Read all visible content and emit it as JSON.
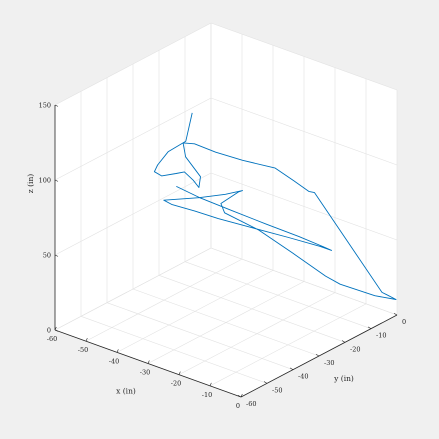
{
  "chart_data": {
    "type": "line3d",
    "title": "",
    "xlabel": "x (in)",
    "ylabel": "y (in)",
    "zlabel": "z (in)",
    "xlim": [
      -60,
      0
    ],
    "ylim": [
      -60,
      0
    ],
    "zlim": [
      0,
      150
    ],
    "xticks": [
      -60,
      -50,
      -40,
      -30,
      -20,
      -10,
      0
    ],
    "yticks": [
      -60,
      -50,
      -40,
      -30,
      -20,
      -10,
      0
    ],
    "zticks": [
      0,
      50,
      100,
      150
    ],
    "xtick_labels": [
      "-60",
      "-50",
      "-40",
      "-30",
      "-20",
      "-10",
      "0"
    ],
    "ytick_labels": [
      "-60",
      "-50",
      "-40",
      "-30",
      "-20",
      "-10",
      "0"
    ],
    "ztick_labels": [
      "0",
      "50",
      "100",
      "150"
    ],
    "grid": true,
    "box": "open",
    "line_color": "#0072BD",
    "pane_color": "#ffffff",
    "background_color": "#f0f0f0",
    "series": [
      {
        "x": [
          -56,
          -48,
          -47,
          -42,
          -38,
          -34,
          -31,
          -30,
          -28,
          -27,
          -29,
          -38,
          -43,
          -41,
          -35,
          -28,
          -20,
          -14,
          -10,
          -9,
          -4,
          -5,
          -2,
          -8,
          -15,
          -18,
          -26,
          -33,
          -38,
          -35,
          -30,
          -26,
          -23,
          -26,
          -32,
          -40,
          -39,
          -35,
          -30,
          -22,
          -14,
          -8,
          -6,
          -8,
          -14,
          -22,
          -30,
          -37,
          -41
        ],
        "y": [
          -12,
          -24,
          -32,
          -42,
          -48,
          -50,
          -48,
          -46,
          -45,
          -44,
          -41,
          -36,
          -31,
          -29,
          -28,
          -26,
          -23,
          -23,
          -22,
          -21,
          -1,
          2,
          2,
          1,
          -4,
          -6,
          -9,
          -14,
          -21,
          -26,
          -28,
          -30,
          -32,
          -35,
          -38,
          -42,
          -40,
          -36,
          -33,
          -29,
          -25,
          -20,
          -18,
          -19,
          -21,
          -24,
          -28,
          -32,
          -36
        ],
        "z": [
          104,
          102,
          103,
          107,
          111,
          113,
          115,
          115,
          110,
          105,
          108,
          110,
          111,
          110,
          108,
          106,
          104,
          100,
          95,
          94,
          13,
          8,
          7,
          6,
          13,
          18,
          30,
          45,
          59,
          72,
          82,
          90,
          95,
          93,
          89,
          85,
          81,
          76,
          72,
          68,
          64,
          58,
          55,
          57,
          61,
          66,
          73,
          80,
          88
        ]
      }
    ]
  }
}
